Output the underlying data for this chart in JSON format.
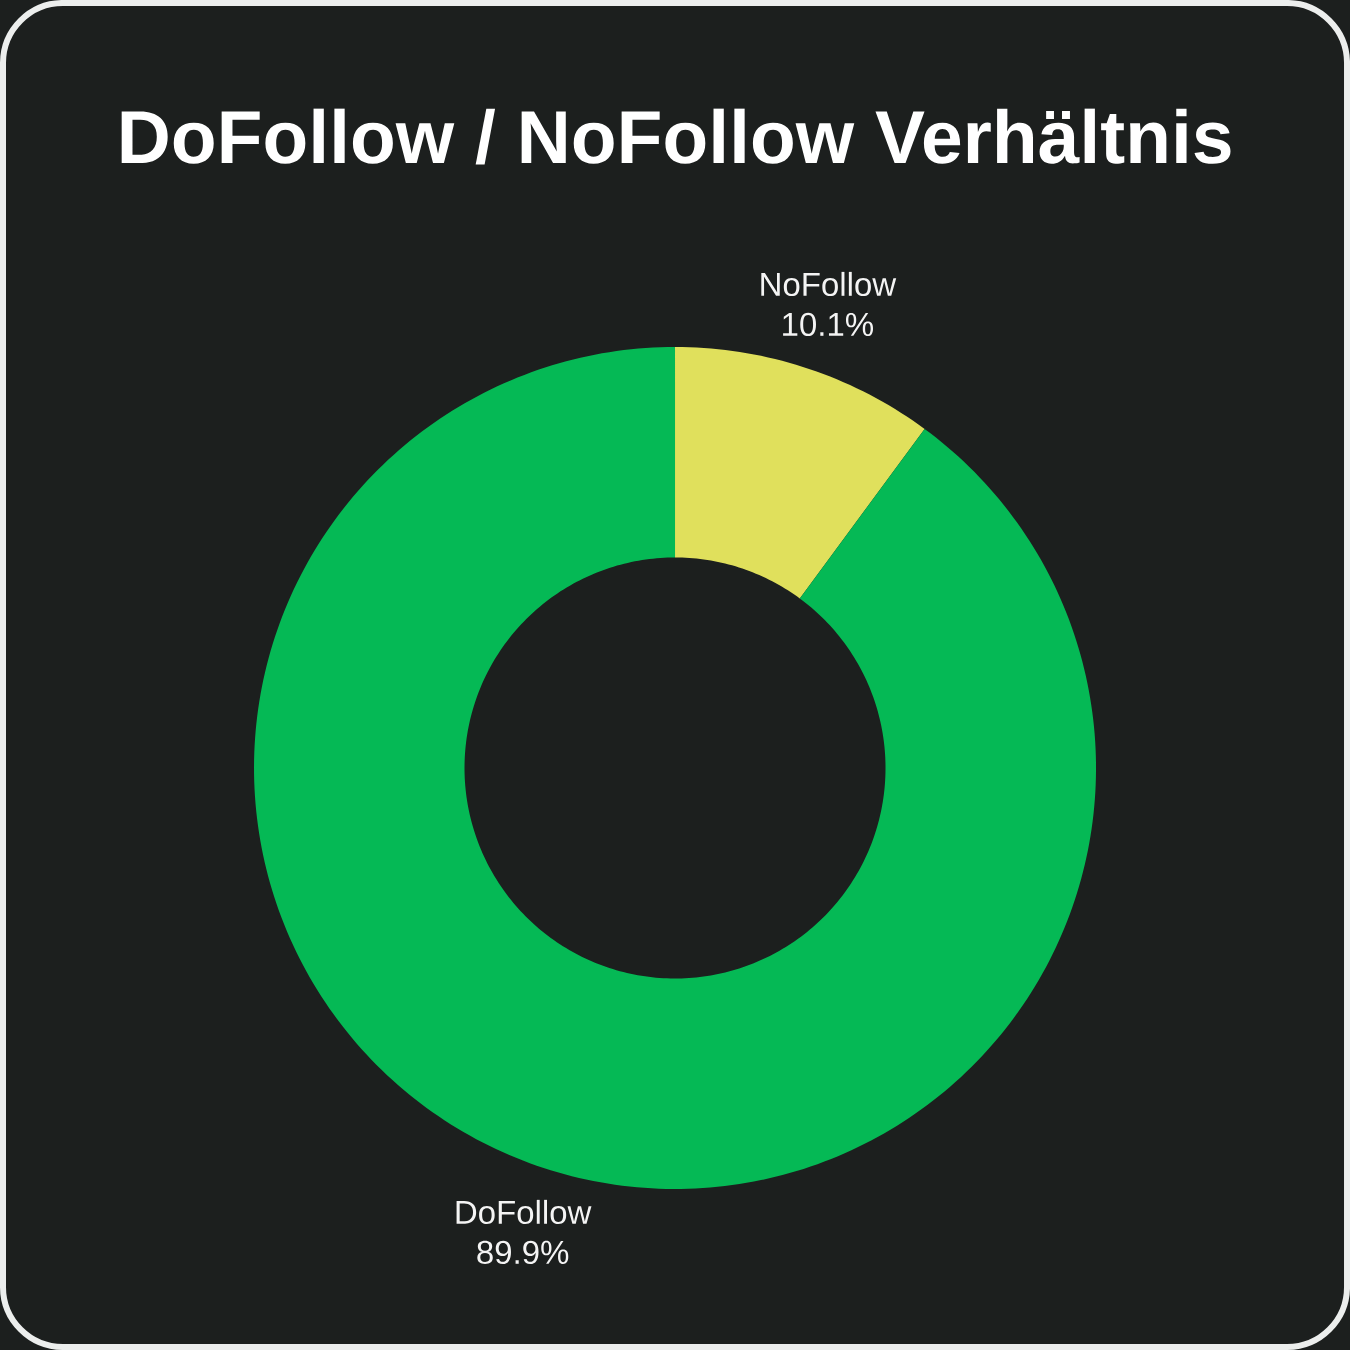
{
  "chart_data": {
    "type": "donut",
    "title": "DoFollow / NoFollow Verhältnis",
    "categories": [
      "NoFollow",
      "DoFollow"
    ],
    "values": [
      10.1,
      89.9
    ],
    "colors": [
      "#e0e05c",
      "#05b955"
    ],
    "value_labels": [
      "10.1%",
      "89.9%"
    ]
  }
}
